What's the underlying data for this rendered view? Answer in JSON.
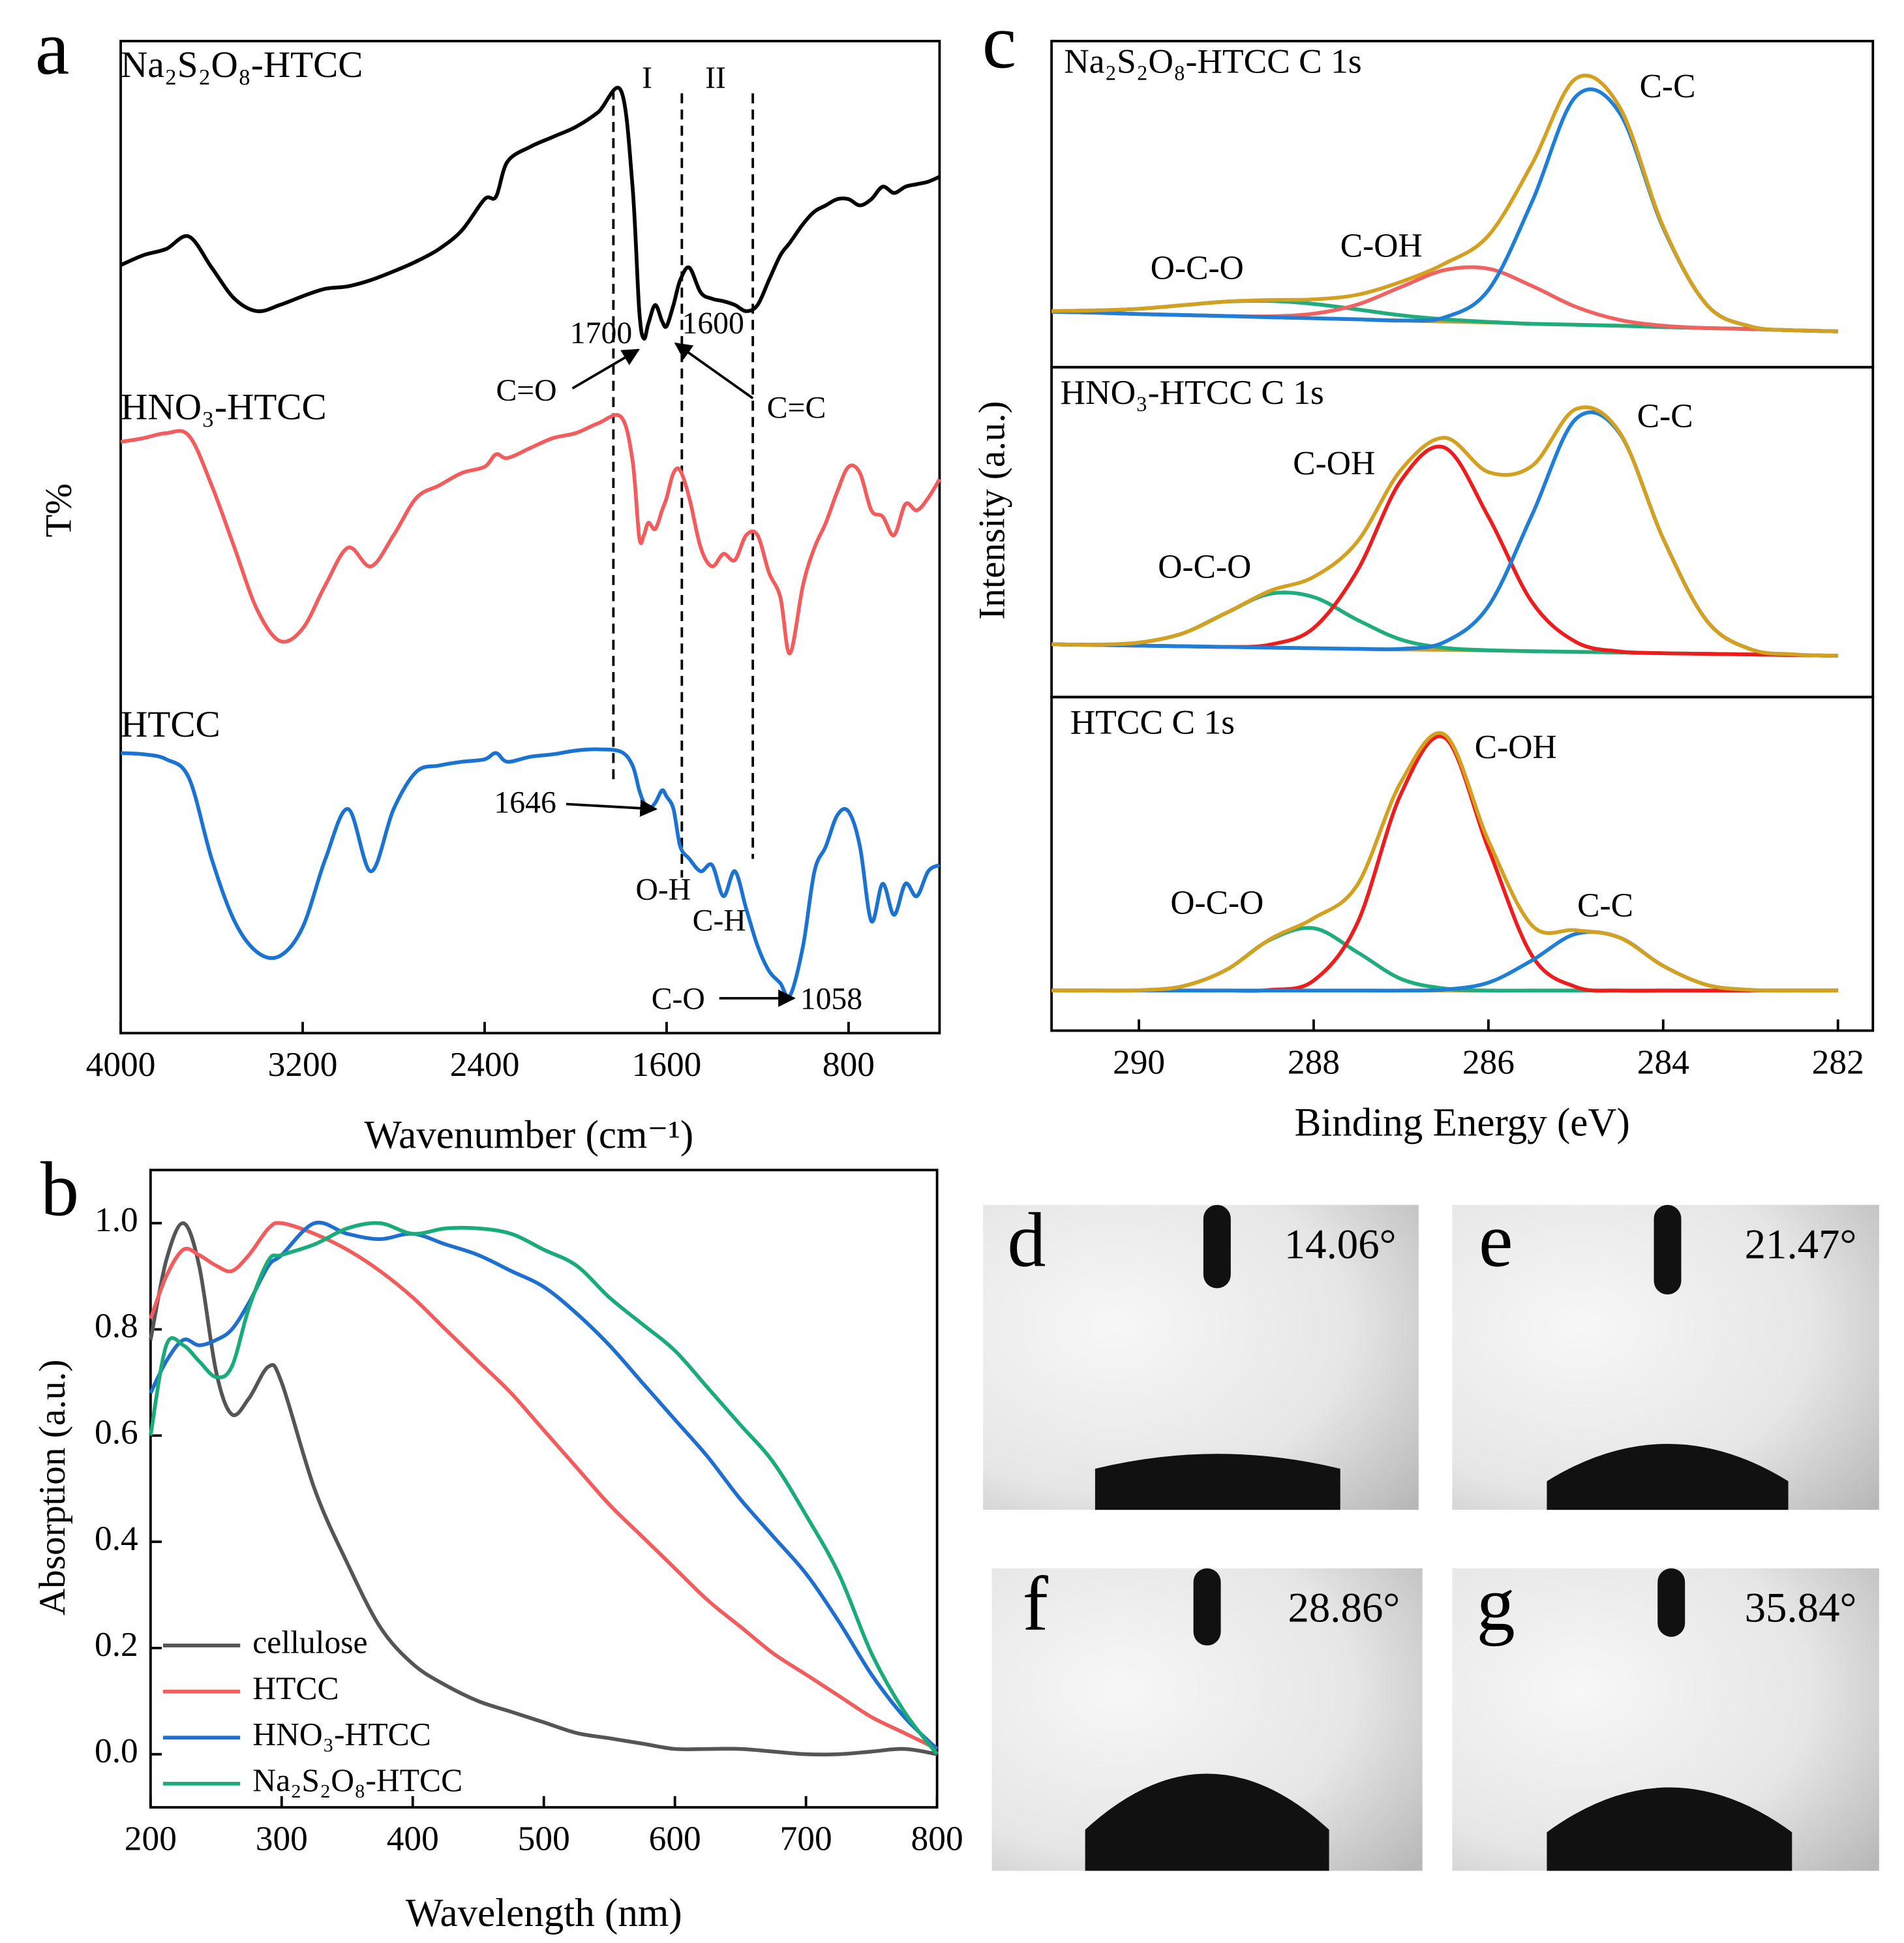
{
  "chart_data": [
    {
      "type": "line",
      "panel_label": "a",
      "xlabel": "Wavenumber (cm⁻¹)",
      "ylabel": "T%",
      "x": [
        4000,
        3900,
        3800,
        3700,
        3600,
        3500,
        3400,
        3300,
        3200,
        3100,
        3000,
        2900,
        2800,
        2700,
        2600,
        2500,
        2400,
        2350,
        2300,
        2200,
        2100,
        2000,
        1900,
        1800,
        1750,
        1720,
        1700,
        1680,
        1650,
        1620,
        1600,
        1570,
        1540,
        1500,
        1450,
        1400,
        1350,
        1300,
        1250,
        1200,
        1150,
        1100,
        1058,
        1000,
        950,
        900,
        850,
        800,
        750,
        700,
        650,
        600,
        550,
        500,
        450,
        400
      ],
      "xlim": [
        4000,
        400
      ],
      "xticks": [
        4000,
        3200,
        2400,
        1600,
        800
      ],
      "ylim": [
        0,
        797
      ],
      "series": [
        {
          "name": "Na₂S₂O₈-HTCC",
          "color": "#000000",
          "values": [
            617,
            625,
            630,
            640,
            615,
            590,
            580,
            585,
            592,
            598,
            600,
            605,
            612,
            620,
            630,
            645,
            670,
            672,
            700,
            712,
            720,
            728,
            740,
            757,
            680,
            580,
            558,
            570,
            585,
            572,
            568,
            585,
            605,
            615,
            595,
            590,
            588,
            585,
            580,
            585,
            605,
            625,
            635,
            650,
            660,
            665,
            670,
            670,
            665,
            670,
            680,
            675,
            680,
            682,
            684,
            688
          ]
        },
        {
          "name": "HNO₃-HTCC",
          "color": "#f25c5c",
          "values": [
            475,
            478,
            482,
            480,
            440,
            390,
            340,
            315,
            325,
            360,
            390,
            375,
            400,
            430,
            440,
            450,
            455,
            465,
            462,
            470,
            478,
            482,
            490,
            495,
            460,
            398,
            400,
            410,
            405,
            420,
            430,
            450,
            452,
            430,
            390,
            375,
            385,
            380,
            400,
            400,
            370,
            350,
            305,
            360,
            390,
            410,
            435,
            455,
            450,
            420,
            415,
            400,
            425,
            420,
            430,
            445
          ]
        },
        {
          "name": "HTCC",
          "color": "#1a73d1",
          "values": [
            225,
            224,
            220,
            205,
            140,
            90,
            65,
            62,
            85,
            140,
            180,
            130,
            180,
            210,
            215,
            218,
            220,
            225,
            218,
            222,
            224,
            227,
            228,
            226,
            215,
            195,
            185,
            180,
            185,
            195,
            190,
            180,
            150,
            140,
            130,
            135,
            110,
            130,
            100,
            70,
            50,
            40,
            30,
            70,
            130,
            150,
            175,
            178,
            150,
            90,
            120,
            95,
            120,
            110,
            130,
            135
          ]
        }
      ],
      "reference_lines": [
        1834,
        1533,
        1221
      ],
      "annotations": [
        "I",
        "II",
        "1700",
        "1600",
        "C=O",
        "C=C",
        "1646",
        "O-H",
        "C-H",
        "C-O",
        "1058"
      ]
    },
    {
      "type": "line",
      "panel_label": "b",
      "xlabel": "Wavelength (nm)",
      "ylabel": "Absorption (a.u.)",
      "x": [
        200,
        212,
        225,
        237,
        250,
        262,
        275,
        290,
        300,
        325,
        350,
        375,
        400,
        425,
        450,
        475,
        500,
        525,
        550,
        575,
        600,
        625,
        650,
        675,
        700,
        725,
        750,
        775,
        800
      ],
      "xlim": [
        200,
        800
      ],
      "xticks": [
        200,
        300,
        400,
        500,
        600,
        700,
        800
      ],
      "ylim": [
        -0.1,
        1.1
      ],
      "yticks": [
        {
          "value": 0,
          "label": "0.0"
        },
        0.2,
        0.4,
        0.6,
        0.8,
        {
          "value": 1,
          "label": "1.0"
        }
      ],
      "legend": "lower left",
      "series": [
        {
          "name": "cellulose",
          "color": "#555555",
          "values": [
            0.78,
            0.93,
            1.0,
            0.92,
            0.72,
            0.64,
            0.67,
            0.73,
            0.7,
            0.5,
            0.36,
            0.24,
            0.17,
            0.13,
            0.1,
            0.08,
            0.06,
            0.04,
            0.03,
            0.02,
            0.01,
            0.01,
            0.01,
            0.005,
            0.0,
            0.0,
            0.005,
            0.01,
            0.0
          ]
        },
        {
          "name": "HTCC",
          "color": "#f25c5c",
          "values": [
            0.82,
            0.9,
            0.95,
            0.94,
            0.92,
            0.91,
            0.94,
            0.99,
            1.0,
            0.98,
            0.95,
            0.91,
            0.86,
            0.8,
            0.74,
            0.68,
            0.61,
            0.54,
            0.47,
            0.41,
            0.35,
            0.29,
            0.24,
            0.19,
            0.15,
            0.11,
            0.07,
            0.04,
            0.01
          ]
        },
        {
          "name": "HNO₃-HTCC",
          "color": "#1f6fd0",
          "values": [
            0.68,
            0.74,
            0.78,
            0.77,
            0.78,
            0.8,
            0.85,
            0.92,
            0.94,
            1.0,
            0.98,
            0.97,
            0.98,
            0.96,
            0.94,
            0.91,
            0.88,
            0.83,
            0.77,
            0.7,
            0.63,
            0.56,
            0.48,
            0.41,
            0.34,
            0.25,
            0.15,
            0.07,
            0.01
          ]
        },
        {
          "name": "Na₂S₂O₈-HTCC",
          "color": "#1aab7a",
          "values": [
            0.6,
            0.77,
            0.77,
            0.74,
            0.71,
            0.73,
            0.84,
            0.93,
            0.94,
            0.96,
            0.99,
            1.0,
            0.98,
            0.99,
            0.99,
            0.98,
            0.95,
            0.92,
            0.86,
            0.81,
            0.76,
            0.69,
            0.62,
            0.55,
            0.45,
            0.34,
            0.19,
            0.08,
            0.0
          ]
        }
      ]
    },
    {
      "type": "line",
      "panel_label": "c",
      "title": "Na₂S₂O₈-HTCC  C 1s",
      "x": [
        291,
        290.5,
        290,
        289.5,
        289,
        288.5,
        288,
        287.5,
        287,
        286.5,
        286,
        285.5,
        285,
        284.5,
        284,
        283.5,
        283,
        282.5,
        282
      ],
      "xlim": [
        291,
        281.6
      ],
      "ylim": [
        0,
        100
      ],
      "series": [
        {
          "color": "#c9a030",
          "values": [
            17,
            16.7,
            16.3,
            16,
            15.7,
            15.3,
            15,
            14.7,
            14.3,
            14,
            13.7,
            13.3,
            13,
            12.7,
            12.3,
            12,
            11.7,
            11.3,
            11
          ]
        },
        {
          "name": "O-C-O",
          "color": "#1fad7e",
          "values": [
            17.2,
            17.4,
            17.9,
            19,
            20.1,
            20.3,
            19.4,
            17.7,
            15.9,
            14.7,
            13.9,
            13.3,
            13,
            12.7,
            12.3,
            12,
            11.7,
            11.3,
            11
          ]
        },
        {
          "name": "C-OH",
          "color": "#f06262",
          "values": [
            17,
            16.7,
            16.3,
            16,
            15.7,
            15.6,
            16.4,
            19.2,
            24.6,
            29.8,
            30.2,
            24.9,
            18.5,
            14.5,
            12.7,
            12,
            11.7,
            11.3,
            11
          ]
        },
        {
          "name": "C-C",
          "color": "#1f7fd6",
          "values": [
            17,
            16.7,
            16.3,
            16,
            15.7,
            15.3,
            15,
            14.7,
            14.3,
            15.3,
            23.7,
            50.8,
            83,
            78,
            42.7,
            19.1,
            12.5,
            11.3,
            11
          ]
        },
        {
          "color": "#d4a020",
          "values": [
            17.2,
            17.4,
            17.9,
            19,
            20.1,
            20.6,
            20.8,
            22.2,
            26.2,
            31.8,
            40.4,
            62.4,
            88.5,
            79.8,
            43.1,
            19.1,
            12.5,
            11.3,
            11
          ]
        }
      ]
    },
    {
      "type": "line",
      "title": "HNO₃-HTCC  C 1s",
      "ylabel": "Intensity (a.u.)",
      "x": [
        291,
        290.5,
        290,
        289.5,
        289,
        288.5,
        288,
        287.5,
        287,
        286.5,
        286,
        285.5,
        285,
        284.5,
        284,
        283.5,
        283,
        282.5,
        282
      ],
      "xlim": [
        291,
        281.6
      ],
      "ylim": [
        0,
        100
      ],
      "series": [
        {
          "color": "#c9a030",
          "values": [
            16,
            15.8,
            15.6,
            15.4,
            15.2,
            15,
            14.8,
            14.6,
            14.4,
            14.3,
            14.1,
            13.9,
            13.7,
            13.5,
            13.3,
            13.1,
            12.9,
            12.7,
            12.5
          ]
        },
        {
          "name": "O-C-O",
          "color": "#1fad7e",
          "values": [
            16,
            15.9,
            16.5,
            19.3,
            25.5,
            31.3,
            30.3,
            23.4,
            17.4,
            14.9,
            14.2,
            13.9,
            13.7,
            13.5,
            13.3,
            13.1,
            12.9,
            12.7,
            12.5
          ]
        },
        {
          "name": "C-OH",
          "color": "#ee1c1c",
          "values": [
            16,
            15.8,
            15.6,
            15.4,
            15.2,
            15.9,
            20.9,
            38.3,
            65.7,
            75.6,
            54.6,
            28.7,
            16.7,
            13.8,
            13.3,
            13.1,
            12.9,
            12.7,
            12.5
          ]
        },
        {
          "name": "C-C",
          "color": "#1f7fd6",
          "values": [
            16,
            15.8,
            15.6,
            15.4,
            15.2,
            15,
            14.8,
            14.6,
            14.6,
            16.7,
            27.6,
            55.3,
            84.3,
            80,
            48,
            23.1,
            14.5,
            12.9,
            12.5
          ]
        },
        {
          "color": "#d4a020",
          "values": [
            16,
            15.9,
            16.5,
            19.3,
            25.5,
            32.2,
            36.4,
            47.1,
            68.9,
            78.6,
            68.2,
            70.1,
            87.3,
            80.3,
            48,
            23.1,
            14.5,
            12.9,
            12.5
          ]
        }
      ]
    },
    {
      "type": "line",
      "title": "HTCC  C 1s",
      "xlabel": "Binding Energy (eV)",
      "x": [
        291,
        290.5,
        290,
        289.5,
        289,
        288.5,
        288,
        287.5,
        287,
        286.5,
        286,
        285.5,
        285,
        284.5,
        284,
        283.5,
        283,
        282.5,
        282
      ],
      "xlim": [
        291,
        281.6
      ],
      "xticks": [
        290,
        288,
        286,
        284,
        282
      ],
      "ylim": [
        0,
        100
      ],
      "series": [
        {
          "color": "#c9a030",
          "values": [
            12,
            12,
            12,
            12,
            12,
            12,
            12,
            12,
            12,
            12,
            12,
            12,
            12,
            12,
            12,
            12,
            12,
            12,
            12
          ]
        },
        {
          "name": "O-C-O",
          "color": "#1fad7e",
          "values": [
            12,
            12,
            12.1,
            13.3,
            18.2,
            27.2,
            30.7,
            23.5,
            15.5,
            12.6,
            12,
            12,
            12,
            12,
            12,
            12,
            12,
            12,
            12
          ]
        },
        {
          "name": "C-OH",
          "color": "#ee1c1c",
          "values": [
            12,
            12,
            12,
            12,
            12,
            12.2,
            15,
            32.2,
            71.1,
            87.8,
            54.5,
            22.4,
            13.1,
            12,
            12,
            12,
            12,
            12,
            12
          ]
        },
        {
          "name": "C-C",
          "color": "#1f7fd6",
          "values": [
            12,
            12,
            12,
            12,
            12,
            12,
            12,
            12,
            12,
            12.3,
            14.4,
            21.1,
            29,
            27.9,
            19.4,
            13.7,
            12.2,
            12,
            12
          ]
        },
        {
          "color": "#d4a020",
          "values": [
            12,
            12,
            12.1,
            13.3,
            18.2,
            27.4,
            33.7,
            43.7,
            74.6,
            88.7,
            56.9,
            31.5,
            30.1,
            27.9,
            19.4,
            13.7,
            12.2,
            12,
            12
          ]
        }
      ]
    }
  ],
  "contact_angles": [
    {
      "label": "d",
      "angle": "14.06°"
    },
    {
      "label": "e",
      "angle": "21.47°"
    },
    {
      "label": "f",
      "angle": "28.86°"
    },
    {
      "label": "g",
      "angle": "35.84°"
    }
  ]
}
